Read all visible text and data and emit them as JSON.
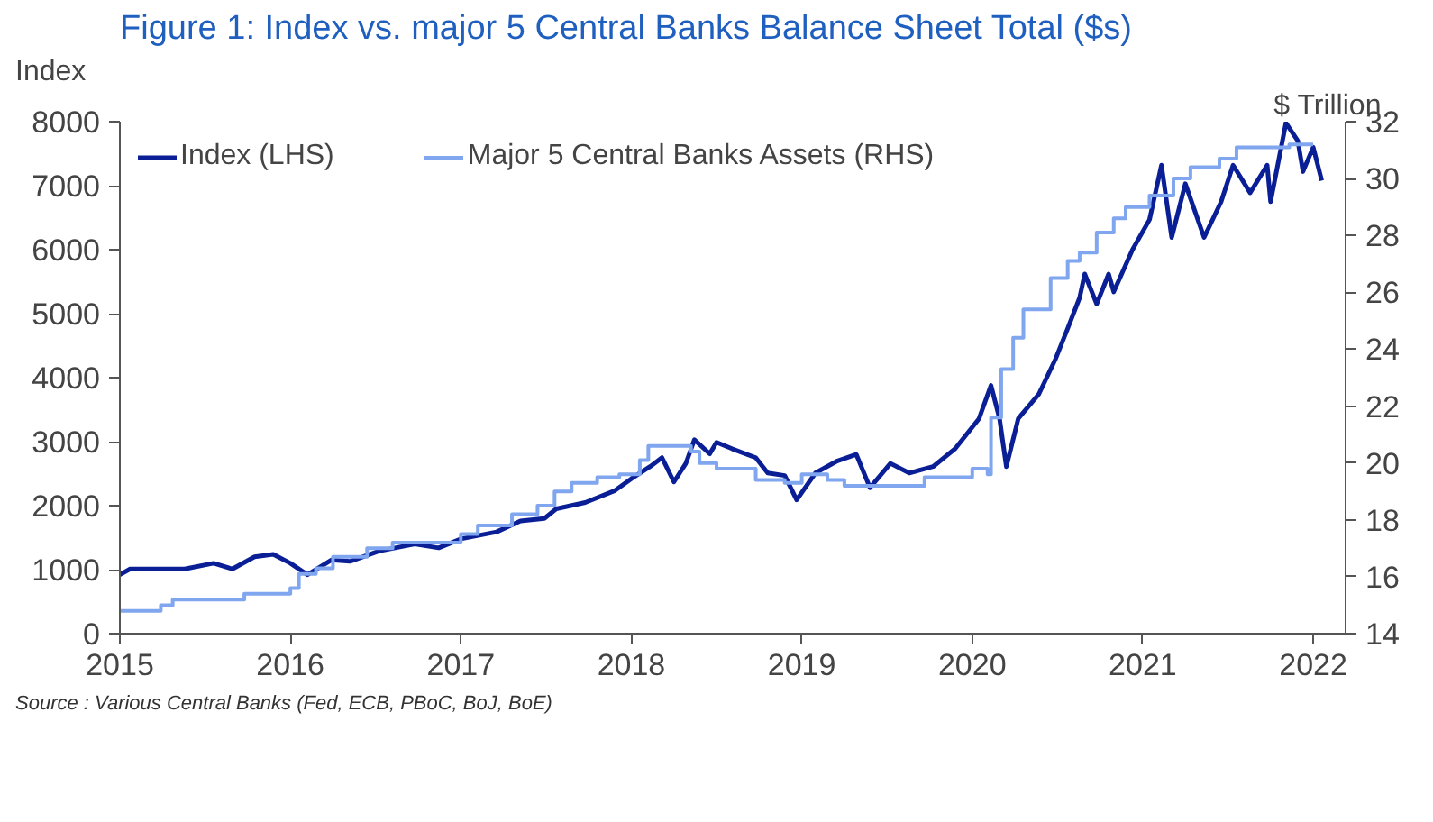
{
  "chart_data": {
    "type": "line",
    "title": "Figure 1: Index vs. major 5 Central Banks Balance Sheet Total ($s)",
    "ylabel": "Index",
    "y2label": "$ Trillion",
    "annotations": [
      "Source : Various Central Banks (Fed, ECB, PBoC, BoJ, BoE)"
    ],
    "xlim": [
      2015,
      2022.19
    ],
    "xticks": [
      2015,
      2016,
      2017,
      2018,
      2019,
      2020,
      2021,
      2022
    ],
    "ylim": [
      0,
      8000
    ],
    "yticks": [
      0,
      1000,
      2000,
      3000,
      4000,
      5000,
      6000,
      7000,
      8000
    ],
    "y2lim": [
      14,
      32
    ],
    "y2ticks": [
      14,
      16,
      18,
      20,
      22,
      24,
      26,
      28,
      30,
      32
    ],
    "grid": false,
    "legend": "top left",
    "series": [
      {
        "name": "Index (LHS)",
        "color": "#0a1e96",
        "x": [
          2015.0,
          2015.06,
          2015.38,
          2015.55,
          2015.66,
          2015.79,
          2015.9,
          2016.0,
          2016.1,
          2016.24,
          2016.35,
          2016.52,
          2016.73,
          2016.87,
          2017.0,
          2017.21,
          2017.35,
          2017.49,
          2017.56,
          2017.73,
          2017.9,
          2018.0,
          2018.11,
          2018.18,
          2018.25,
          2018.32,
          2018.37,
          2018.46,
          2018.5,
          2018.59,
          2018.73,
          2018.8,
          2018.9,
          2018.97,
          2019.08,
          2019.21,
          2019.32,
          2019.4,
          2019.52,
          2019.63,
          2019.77,
          2019.9,
          2020.04,
          2020.11,
          2020.16,
          2020.2,
          2020.27,
          2020.39,
          2020.49,
          2020.56,
          2020.63,
          2020.66,
          2020.73,
          2020.8,
          2020.83,
          2020.94,
          2021.04,
          2021.11,
          2021.17,
          2021.25,
          2021.36,
          2021.46,
          2021.53,
          2021.63,
          2021.73,
          2021.75,
          2021.84,
          2021.91,
          2021.94,
          2022.0,
          2022.05
        ],
        "values": [
          920,
          1010,
          1010,
          1100,
          1010,
          1200,
          1240,
          1100,
          920,
          1150,
          1130,
          1290,
          1400,
          1340,
          1480,
          1590,
          1760,
          1800,
          1950,
          2050,
          2230,
          2420,
          2610,
          2750,
          2370,
          2660,
          3030,
          2810,
          2990,
          2890,
          2750,
          2510,
          2470,
          2090,
          2510,
          2700,
          2800,
          2280,
          2660,
          2510,
          2610,
          2890,
          3360,
          3880,
          3360,
          2610,
          3360,
          3740,
          4300,
          4770,
          5250,
          5620,
          5150,
          5620,
          5340,
          6000,
          6470,
          7320,
          6190,
          7030,
          6190,
          6750,
          7320,
          6890,
          7320,
          6750,
          7980,
          7700,
          7220,
          7600,
          7080
        ]
      },
      {
        "name": "Major 5 Central Banks Assets (RHS)",
        "color": "#7fa6ee",
        "type": "step",
        "axis": "y2",
        "x": [
          2015.0,
          2015.24,
          2015.31,
          2015.73,
          2016.0,
          2016.05,
          2016.15,
          2016.25,
          2016.45,
          2016.6,
          2017.0,
          2017.1,
          2017.3,
          2017.45,
          2017.55,
          2017.65,
          2017.8,
          2017.93,
          2018.05,
          2018.1,
          2018.35,
          2018.4,
          2018.5,
          2018.73,
          2018.9,
          2019.0,
          2019.15,
          2019.25,
          2019.72,
          2020.0,
          2020.09,
          2020.11,
          2020.17,
          2020.24,
          2020.3,
          2020.46,
          2020.56,
          2020.63,
          2020.73,
          2020.83,
          2020.9,
          2021.04,
          2021.18,
          2021.28,
          2021.45,
          2021.55,
          2021.86,
          2022.0
        ],
        "values": [
          14.8,
          15.0,
          15.2,
          15.4,
          15.6,
          16.1,
          16.3,
          16.7,
          17.0,
          17.2,
          17.5,
          17.8,
          18.2,
          18.5,
          19.0,
          19.3,
          19.5,
          19.6,
          20.1,
          20.6,
          20.4,
          20.0,
          19.8,
          19.4,
          19.3,
          19.6,
          19.4,
          19.2,
          19.5,
          19.8,
          19.6,
          21.6,
          23.3,
          24.4,
          25.4,
          26.5,
          27.1,
          27.4,
          28.1,
          28.6,
          29.0,
          29.4,
          30.0,
          30.4,
          30.7,
          31.1,
          31.2,
          31.2
        ]
      }
    ]
  }
}
